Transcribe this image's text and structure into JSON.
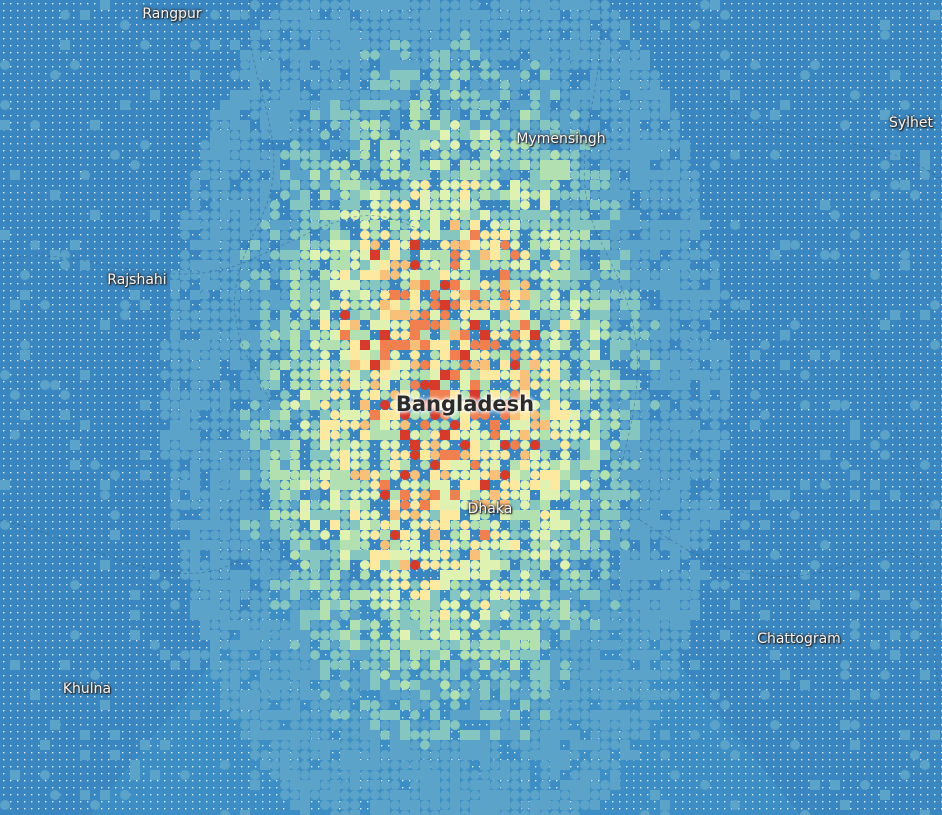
{
  "map": {
    "country_label": "Bangladesh",
    "place_labels": {
      "rangpur": "Rangpur",
      "mymensingh": "Mymensingh",
      "sylhet": "Sylhet",
      "rajshahi": "Rajshahi",
      "dhaka": "Dhaka",
      "chattogram": "Chattogram",
      "khulna": "Khulna"
    },
    "color_ramp": [
      "#3a86c0",
      "#5ba3c9",
      "#86c6c0",
      "#b3e0b0",
      "#dff2b2",
      "#fde9a0",
      "#f9c07a",
      "#f08050",
      "#d63a2a"
    ],
    "background_color": "#3a86c0",
    "grid_dot_color": "#ffffff"
  }
}
